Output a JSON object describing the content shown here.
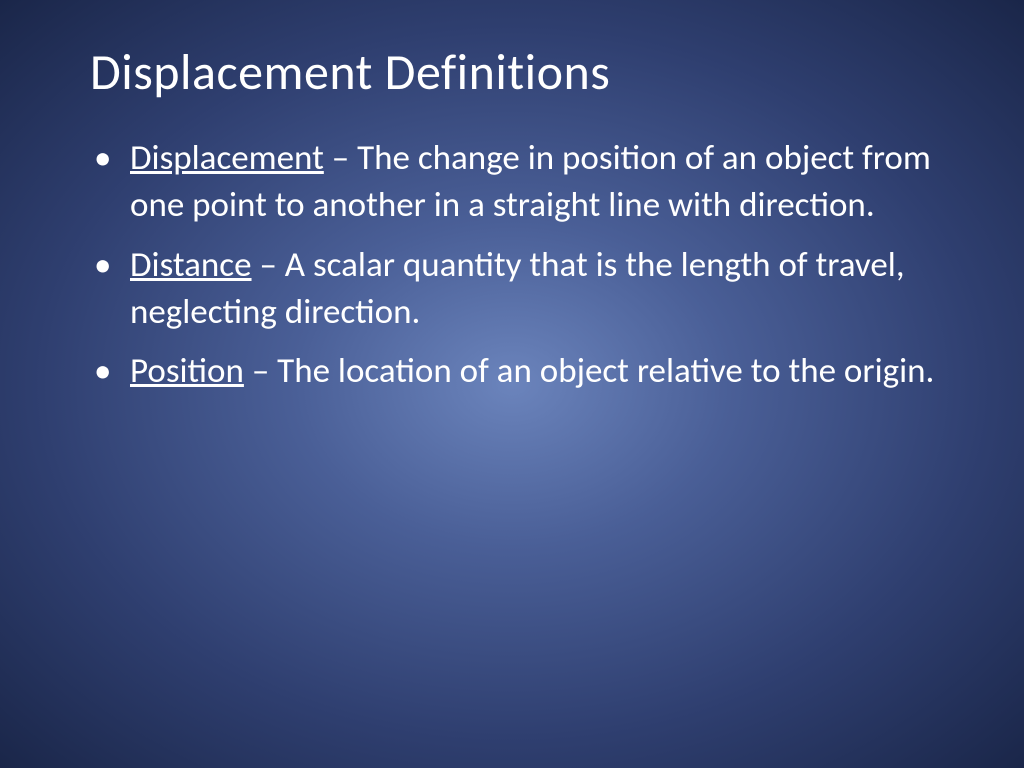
{
  "slide": {
    "title": "Displacement Definitions",
    "background": {
      "gradient_center": "#6b84bc",
      "gradient_mid": "#4a5f97",
      "gradient_outer": "#2f3f70",
      "gradient_edge": "#1a2649"
    },
    "text_color": "#ffffff",
    "title_fontsize": 50,
    "body_fontsize": 35,
    "bullets": [
      {
        "term": "Displacement",
        "definition": " – The change in position of an object from one point to another in a straight line with direction."
      },
      {
        "term": "Distance",
        "definition": " – A scalar quantity that is the length of travel, neglecting direction."
      },
      {
        "term": "Position",
        "definition": " – The location of an object relative to the origin."
      }
    ]
  }
}
